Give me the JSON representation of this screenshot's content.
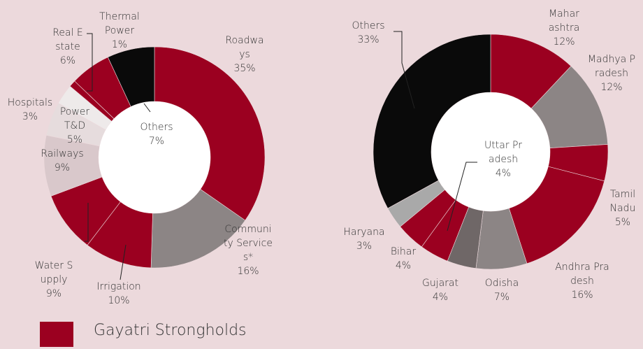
{
  "chart_data": [
    {
      "type": "donut",
      "categories": [
        "Roadways",
        "Community Services*",
        "Irrigation",
        "Water Supply",
        "Railways",
        "Power T&D",
        "Hospitals",
        "Thermal Power",
        "Real Estate",
        "Others"
      ],
      "values": [
        35,
        16,
        10,
        9,
        9,
        5,
        3,
        1,
        6,
        7
      ],
      "value_labels": [
        "35%",
        "16%",
        "10%",
        "9%",
        "9%",
        "5%",
        "3%",
        "1%",
        "6%",
        "7%"
      ],
      "colors": [
        "#9b0020",
        "#8c8585",
        "#9b0020",
        "#9b0020",
        "#d9c8cb",
        "#e6dcdd",
        "#eeeaea",
        "#9b0020",
        "#9b0020",
        "#0a0a0a"
      ],
      "legend": {
        "name": "Gayatri Strongholds",
        "color": "#9b0020"
      }
    },
    {
      "type": "donut",
      "categories": [
        "Maharashtra",
        "Madhya Pradesh",
        "Tamil Nadu",
        "Andhra Pradesh",
        "Odisha",
        "Gujarat",
        "Uttar Pradesh",
        "Bihar",
        "Haryana",
        "Others"
      ],
      "values": [
        12,
        12,
        5,
        16,
        7,
        4,
        4,
        4,
        3,
        33
      ],
      "value_labels": [
        "12%",
        "12%",
        "5%",
        "16%",
        "7%",
        "4%",
        "4%",
        "4%",
        "3%",
        "33%"
      ],
      "colors": [
        "#9b0020",
        "#8c8585",
        "#9b0020",
        "#9b0020",
        "#8c8585",
        "#6f6767",
        "#9b0020",
        "#9b0020",
        "#a9a9a9",
        "#0a0a0a"
      ]
    }
  ]
}
